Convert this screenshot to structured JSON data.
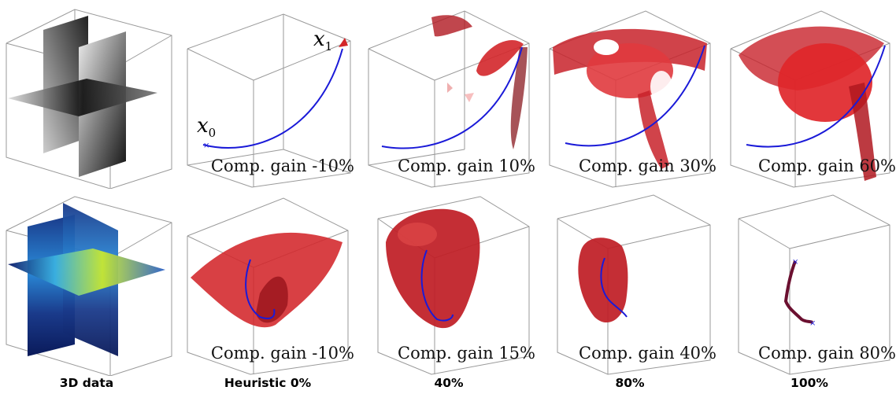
{
  "top_row": {
    "panel_1": {
      "gain": ""
    },
    "panel_2": {
      "gain": "Comp. gain -10%"
    },
    "panel_3": {
      "gain": "Comp. gain 10%"
    },
    "panel_4": {
      "gain": "Comp. gain 30%"
    },
    "panel_5": {
      "gain": "Comp. gain 60%"
    }
  },
  "bottom_row": {
    "panel_2": {
      "gain": "Comp. gain -10%"
    },
    "panel_3": {
      "gain": "Comp. gain 15%"
    },
    "panel_4": {
      "gain": "Comp. gain 40%"
    },
    "panel_5": {
      "gain": "Comp. gain 80%"
    }
  },
  "column_labels": [
    "3D data",
    "Heuristic 0%",
    "40%",
    "80%",
    "100%"
  ],
  "points": {
    "start": "x",
    "start_sub": "0",
    "end": "x",
    "end_sub": "1"
  },
  "colors": {
    "surface": "#d3262a",
    "path": "#1a1ad8",
    "thin_path": "#6b1030",
    "edge": "#888888"
  }
}
